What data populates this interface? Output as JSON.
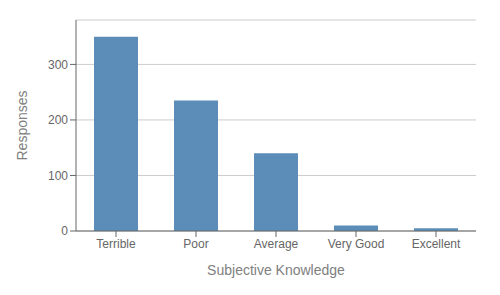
{
  "chart_data": {
    "type": "bar",
    "categories": [
      "Terrible",
      "Poor",
      "Average",
      "Very Good",
      "Excellent"
    ],
    "values": [
      350,
      235,
      140,
      10,
      5
    ],
    "color": "#5b8db8",
    "xlabel": "Subjective Knowledge",
    "ylabel": "Responses",
    "ylim": [
      0,
      380
    ],
    "yticks": [
      0,
      100,
      200,
      300
    ],
    "grid": true
  }
}
